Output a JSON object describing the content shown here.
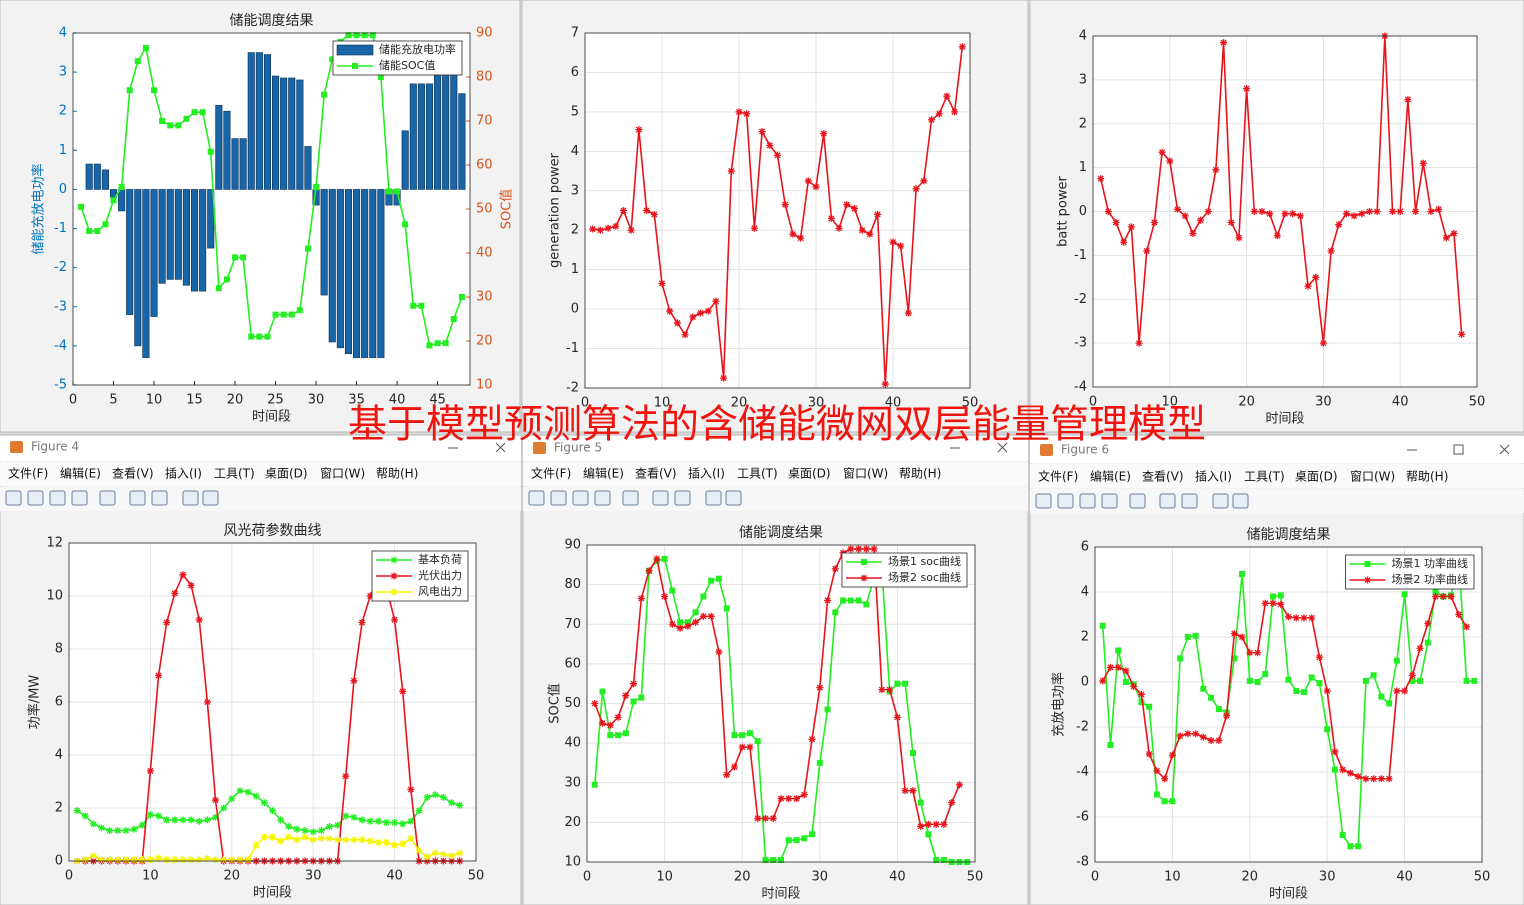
{
  "overlay_title": "基于模型预测算法的含储能微网双层能量管理模型",
  "windows": [
    {
      "title": "Figure 4",
      "menu": [
        "文件(F)",
        "编辑(E)",
        "查看(V)",
        "插入(I)",
        "工具(T)",
        "桌面(D)",
        "窗口(W)",
        "帮助(H)"
      ]
    },
    {
      "title": "Figure 5",
      "menu": [
        "文件(F)",
        "编辑(E)",
        "查看(V)",
        "插入(I)",
        "工具(T)",
        "桌面(D)",
        "窗口(W)",
        "帮助(H)"
      ]
    },
    {
      "title": "Figure 6",
      "menu": [
        "文件(F)",
        "编辑(E)",
        "查看(V)",
        "插入(I)",
        "工具(T)",
        "桌面(D)",
        "窗口(W)",
        "帮助(H)"
      ]
    }
  ],
  "chart_data": [
    {
      "type": "combo",
      "title": "储能调度结果",
      "xlabel": "时间段",
      "ylabel": "储能充放电功率",
      "y2label": "SOC值",
      "ycolor": "#0072bd",
      "y2color": "#d95319",
      "grid": false,
      "legend": "upper right",
      "xlim": [
        0,
        49
      ],
      "xticks": [
        0,
        5,
        10,
        15,
        20,
        25,
        30,
        35,
        40,
        45
      ],
      "ylim": [
        -5,
        4
      ],
      "yticks": [
        -5,
        -4,
        -3,
        -2,
        -1,
        0,
        1,
        2,
        3,
        4
      ],
      "y2lim": [
        10,
        90
      ],
      "y2ticks": [
        10,
        20,
        30,
        40,
        50,
        60,
        70,
        80,
        90
      ],
      "x": [
        1,
        2,
        3,
        4,
        5,
        6,
        7,
        8,
        9,
        10,
        11,
        12,
        13,
        14,
        15,
        16,
        17,
        18,
        19,
        20,
        21,
        22,
        23,
        24,
        25,
        26,
        27,
        28,
        29,
        30,
        31,
        32,
        33,
        34,
        35,
        36,
        37,
        38,
        39,
        40,
        41,
        42,
        43,
        44,
        45,
        46,
        47,
        48
      ],
      "series": [
        {
          "name": "储能充放电功率",
          "type": "bar",
          "color": "#1865a8",
          "values": [
            0,
            0.65,
            0.65,
            0.5,
            -0.2,
            -0.55,
            -3.2,
            -4.0,
            -4.3,
            -3.25,
            -2.4,
            -2.3,
            -2.3,
            -2.45,
            -2.6,
            -2.6,
            -1.5,
            2.15,
            2.0,
            1.3,
            1.3,
            3.5,
            3.5,
            3.45,
            2.9,
            2.85,
            2.85,
            2.8,
            1.1,
            -0.4,
            -2.7,
            -3.9,
            -4.05,
            -4.2,
            -4.3,
            -4.3,
            -4.3,
            -4.3,
            -0.4,
            -0.4,
            1.5,
            2.7,
            2.7,
            2.7,
            3.0,
            3.0,
            3.1,
            2.45
          ]
        },
        {
          "name": "储能SOC值",
          "type": "line",
          "axis": "y2",
          "color": "#22ee22",
          "marker": "square",
          "values": [
            50.5,
            45,
            45,
            46.5,
            52,
            55,
            77,
            83.6,
            86.6,
            77,
            70,
            69,
            69,
            70.5,
            72,
            72,
            63,
            32,
            34,
            39,
            39,
            21,
            21,
            21,
            26,
            26,
            26,
            27,
            41,
            55,
            76,
            84,
            88,
            89.5,
            89.5,
            89.5,
            89.5,
            80,
            54,
            54,
            46.5,
            28,
            28,
            19,
            19.5,
            19.5,
            25,
            30
          ]
        }
      ]
    },
    {
      "type": "line",
      "ylabel": "generation power",
      "grid": true,
      "xlim": [
        0,
        50
      ],
      "xticks": [
        0,
        10,
        20,
        30,
        40,
        50
      ],
      "ylim": [
        -2,
        7
      ],
      "yticks": [
        -2,
        -1,
        0,
        1,
        2,
        3,
        4,
        5,
        6,
        7
      ],
      "x": [
        1,
        2,
        3,
        4,
        5,
        6,
        7,
        8,
        9,
        10,
        11,
        12,
        13,
        14,
        15,
        16,
        17,
        18,
        19,
        20,
        21,
        22,
        23,
        24,
        25,
        26,
        27,
        28,
        29,
        30,
        31,
        32,
        33,
        34,
        35,
        36,
        37,
        38,
        39,
        40,
        41,
        42,
        43,
        44,
        45,
        46,
        47,
        48,
        49
      ],
      "series": [
        {
          "color": "#e8141b",
          "marker": "asterisk",
          "values": [
            2.03,
            2.0,
            2.05,
            2.1,
            2.5,
            2.0,
            4.55,
            2.5,
            2.4,
            0.65,
            -0.05,
            -0.35,
            -0.65,
            -0.2,
            -0.1,
            -0.05,
            0.2,
            -1.75,
            3.5,
            5.0,
            4.95,
            2.05,
            4.5,
            4.15,
            3.9,
            2.65,
            1.9,
            1.8,
            3.25,
            3.1,
            4.45,
            2.3,
            2.05,
            2.65,
            2.55,
            2.0,
            1.9,
            2.4,
            -1.9,
            1.7,
            1.6,
            -0.1,
            3.05,
            3.25,
            4.8,
            4.95,
            5.4,
            5.0,
            6.65
          ]
        }
      ]
    },
    {
      "type": "line",
      "ylabel": "batt power",
      "xlabel": "时间段",
      "grid": true,
      "xlim": [
        0,
        50
      ],
      "xticks": [
        0,
        10,
        20,
        30,
        40,
        50
      ],
      "ylim": [
        -4,
        4
      ],
      "yticks": [
        -4,
        -3,
        -2,
        -1,
        0,
        1,
        2,
        3,
        4
      ],
      "x": [
        1,
        2,
        3,
        4,
        5,
        6,
        7,
        8,
        9,
        10,
        11,
        12,
        13,
        14,
        15,
        16,
        17,
        18,
        19,
        20,
        21,
        22,
        23,
        24,
        25,
        26,
        27,
        28,
        29,
        30,
        31,
        32,
        33,
        34,
        35,
        36,
        37,
        38,
        39,
        40,
        41,
        42,
        43,
        44,
        45,
        46,
        47,
        48
      ],
      "series": [
        {
          "color": "#e8141b",
          "marker": "asterisk",
          "values": [
            0.75,
            0.0,
            -0.25,
            -0.7,
            -0.35,
            -3.0,
            -0.9,
            -0.25,
            1.35,
            1.15,
            0.05,
            -0.1,
            -0.5,
            -0.2,
            0.0,
            0.95,
            3.85,
            -0.25,
            -0.6,
            2.8,
            0.0,
            0.0,
            -0.05,
            -0.55,
            -0.05,
            -0.05,
            -0.1,
            -1.7,
            -1.5,
            -3.0,
            -0.9,
            -0.3,
            -0.05,
            -0.1,
            -0.05,
            0.0,
            0.0,
            4.0,
            0.0,
            0.0,
            2.55,
            0.0,
            1.1,
            0.0,
            0.05,
            -0.6,
            -0.5,
            -2.8
          ]
        }
      ]
    },
    {
      "type": "line",
      "title": "风光荷参数曲线",
      "xlabel": "时间段",
      "ylabel": "功率/MW",
      "grid": true,
      "legend": "upper right",
      "xlim": [
        0,
        50
      ],
      "xticks": [
        0,
        10,
        20,
        30,
        40,
        50
      ],
      "ylim": [
        0,
        12
      ],
      "yticks": [
        0,
        2,
        4,
        6,
        8,
        10,
        12
      ],
      "x": [
        1,
        2,
        3,
        4,
        5,
        6,
        7,
        8,
        9,
        10,
        11,
        12,
        13,
        14,
        15,
        16,
        17,
        18,
        19,
        20,
        21,
        22,
        23,
        24,
        25,
        26,
        27,
        28,
        29,
        30,
        31,
        32,
        33,
        34,
        35,
        36,
        37,
        38,
        39,
        40,
        41,
        42,
        43,
        44,
        45,
        46,
        47,
        48
      ],
      "series": [
        {
          "name": "基本负荷",
          "color": "#22ee22",
          "marker": "asterisk",
          "values": [
            1.9,
            1.7,
            1.4,
            1.25,
            1.15,
            1.15,
            1.15,
            1.2,
            1.35,
            1.75,
            1.7,
            1.55,
            1.55,
            1.55,
            1.55,
            1.5,
            1.55,
            1.65,
            2.0,
            2.35,
            2.65,
            2.6,
            2.45,
            2.2,
            1.9,
            1.55,
            1.3,
            1.2,
            1.15,
            1.1,
            1.15,
            1.3,
            1.35,
            1.7,
            1.65,
            1.55,
            1.5,
            1.5,
            1.45,
            1.45,
            1.4,
            1.5,
            1.9,
            2.4,
            2.5,
            2.4,
            2.2,
            2.1
          ]
        },
        {
          "name": "光伏出力",
          "color": "#e8141b",
          "marker": "asterisk",
          "values": [
            0,
            0,
            0,
            0,
            0,
            0,
            0,
            0,
            0,
            3.4,
            7.0,
            9.0,
            10.1,
            10.8,
            10.4,
            9.1,
            6.0,
            2.3,
            0,
            0,
            0,
            0,
            0,
            0,
            0,
            0,
            0,
            0,
            0,
            0,
            0,
            0,
            0,
            3.2,
            6.8,
            9.0,
            10.0,
            10.7,
            10.3,
            9.1,
            6.4,
            2.7,
            0,
            0,
            0,
            0,
            0,
            0
          ]
        },
        {
          "name": "风电出力",
          "color": "#f5f500",
          "marker": "asterisk",
          "values": [
            0,
            0.05,
            0.2,
            0.05,
            0.05,
            0.05,
            0.05,
            0.05,
            0.05,
            0.05,
            0.1,
            0.05,
            0.05,
            0.05,
            0.05,
            0.05,
            0.1,
            0.05,
            0.05,
            0.05,
            0.05,
            0.05,
            0.6,
            0.9,
            0.9,
            0.75,
            0.9,
            0.8,
            0.9,
            0.8,
            0.85,
            0.85,
            0.8,
            0.8,
            0.8,
            0.8,
            0.75,
            0.7,
            0.7,
            0.6,
            0.65,
            0.85,
            0.4,
            0.15,
            0.3,
            0.25,
            0.2,
            0.3
          ]
        }
      ]
    },
    {
      "type": "line",
      "title": "储能调度结果",
      "xlabel": "时间段",
      "ylabel": "SOC值",
      "grid": true,
      "legend": "upper right",
      "xlim": [
        0,
        50
      ],
      "xticks": [
        0,
        10,
        20,
        30,
        40,
        50
      ],
      "ylim": [
        10,
        90
      ],
      "yticks": [
        10,
        20,
        30,
        40,
        50,
        60,
        70,
        80,
        90
      ],
      "x": [
        1,
        2,
        3,
        4,
        5,
        6,
        7,
        8,
        9,
        10,
        11,
        12,
        13,
        14,
        15,
        16,
        17,
        18,
        19,
        20,
        21,
        22,
        23,
        24,
        25,
        26,
        27,
        28,
        29,
        30,
        31,
        32,
        33,
        34,
        35,
        36,
        37,
        38,
        39,
        40,
        41,
        42,
        43,
        44,
        45,
        46,
        47,
        48,
        49
      ],
      "series": [
        {
          "name": "场景1 soc曲线",
          "color": "#22ee22",
          "marker": "square",
          "values": [
            29.5,
            53,
            42,
            42,
            42.5,
            50.5,
            51.5,
            83.5,
            86,
            86.5,
            78.5,
            70.5,
            70.5,
            73,
            77,
            81,
            81.5,
            74,
            42,
            42,
            42.5,
            40.5,
            10.5,
            10.5,
            10.5,
            15.5,
            15.5,
            16,
            17,
            35,
            48.5,
            73,
            76,
            76,
            76,
            75,
            82,
            84,
            53,
            55,
            55,
            37.5,
            25,
            17,
            10.5,
            10.5,
            10,
            10,
            10
          ]
        },
        {
          "name": "场景2 soc曲线",
          "color": "#e8141b",
          "marker": "asterisk",
          "values": [
            50,
            45,
            44.5,
            46.5,
            52,
            55,
            76.5,
            83.5,
            86.5,
            77,
            70,
            69,
            69.5,
            70.5,
            72,
            72,
            63,
            32,
            34,
            39,
            39,
            21,
            21,
            21,
            26,
            26,
            26,
            27,
            41,
            54,
            76,
            84,
            88,
            89,
            89,
            89,
            89,
            53.5,
            53.5,
            46.5,
            28,
            28,
            19,
            19.5,
            19.5,
            19.5,
            25,
            29.5,
            null
          ]
        }
      ]
    },
    {
      "type": "line",
      "title": "储能调度结果",
      "xlabel": "时间段",
      "ylabel": "充放电功率",
      "grid": true,
      "legend": "upper right",
      "xlim": [
        0,
        50
      ],
      "xticks": [
        0,
        10,
        20,
        30,
        40,
        50
      ],
      "ylim": [
        -8,
        6
      ],
      "yticks": [
        -8,
        -6,
        -4,
        -2,
        0,
        2,
        4,
        6
      ],
      "x": [
        1,
        2,
        3,
        4,
        5,
        6,
        7,
        8,
        9,
        10,
        11,
        12,
        13,
        14,
        15,
        16,
        17,
        18,
        19,
        20,
        21,
        22,
        23,
        24,
        25,
        26,
        27,
        28,
        29,
        30,
        31,
        32,
        33,
        34,
        35,
        36,
        37,
        38,
        39,
        40,
        41,
        42,
        43,
        44,
        45,
        46,
        47,
        48,
        49
      ],
      "series": [
        {
          "name": "场景1 功率曲线",
          "color": "#22ee22",
          "marker": "square",
          "values": [
            2.5,
            -2.8,
            1.4,
            0,
            -0.1,
            -0.9,
            -1.1,
            -5.0,
            -5.3,
            -5.3,
            1.05,
            2.0,
            2.05,
            -0.3,
            -0.7,
            -1.2,
            -1.35,
            1.05,
            4.8,
            0.05,
            0.0,
            0.35,
            3.8,
            3.85,
            0.1,
            -0.4,
            -0.45,
            0.2,
            -0.05,
            -2.1,
            -3.9,
            -6.8,
            -7.3,
            -7.3,
            0.05,
            0.3,
            -0.65,
            -0.95,
            0.95,
            3.9,
            0.05,
            0.05,
            1.75,
            4.0,
            3.8,
            3.85,
            5.5,
            0.05,
            0.05
          ]
        },
        {
          "name": "场景2 功率曲线",
          "color": "#e8141b",
          "marker": "asterisk",
          "values": [
            0.05,
            0.65,
            0.65,
            0.5,
            -0.2,
            -0.55,
            -3.2,
            -3.95,
            -4.3,
            -3.25,
            -2.4,
            -2.3,
            -2.3,
            -2.45,
            -2.6,
            -2.6,
            -1.5,
            2.15,
            2.0,
            1.3,
            1.3,
            3.5,
            3.5,
            3.45,
            2.9,
            2.85,
            2.85,
            2.85,
            1.1,
            -0.4,
            -3.1,
            -3.9,
            -4.05,
            -4.2,
            -4.3,
            -4.3,
            -4.3,
            -4.3,
            -0.4,
            -0.4,
            0.3,
            1.5,
            2.6,
            3.8,
            3.8,
            3.8,
            3.0,
            2.45,
            null
          ]
        }
      ]
    }
  ]
}
